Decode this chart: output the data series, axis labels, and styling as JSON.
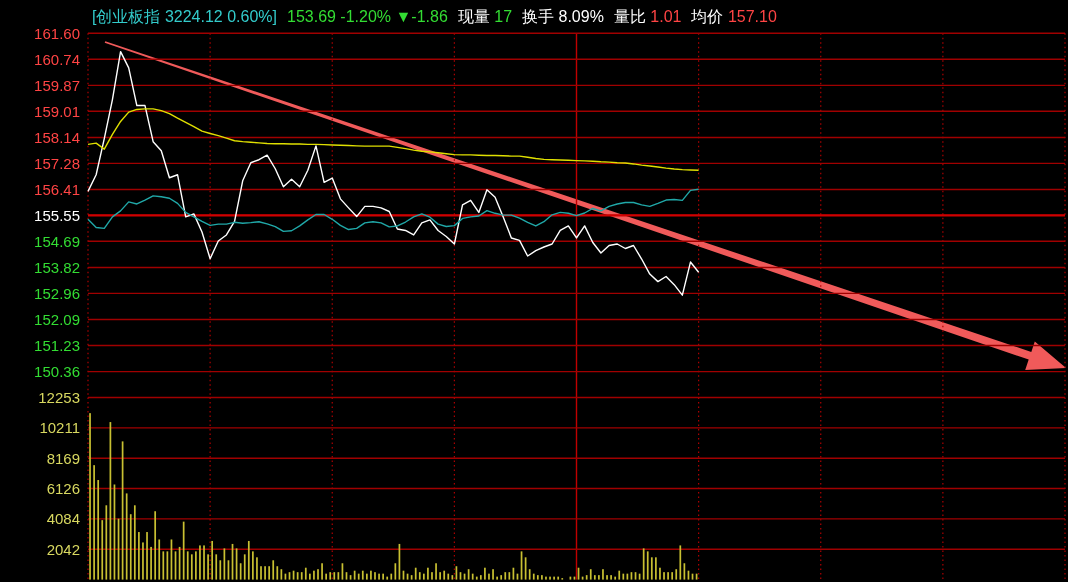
{
  "chart_data": [
    {
      "type": "line",
      "annotations": [
        "[创业板指 3224.12 0.60%]",
        "153.69 -1.20% ▼-1.86",
        "现量 17",
        "换手 8.09%",
        "量比 1.01",
        "均价 157.10"
      ],
      "categories": [
        null,
        null,
        null,
        null,
        null,
        null,
        null,
        null,
        null,
        null,
        null,
        null,
        null,
        null,
        null,
        null,
        null,
        null,
        null,
        null,
        null,
        null,
        null,
        null,
        null,
        null,
        null,
        null,
        null,
        null,
        null,
        null,
        null,
        null,
        null,
        null,
        null,
        null,
        null,
        null,
        null,
        null,
        null,
        null,
        null,
        null,
        null,
        null,
        null,
        null,
        null,
        null,
        null,
        null,
        null,
        null,
        null,
        null,
        null,
        null,
        null,
        null,
        null,
        null,
        null,
        null,
        null,
        null,
        null,
        null,
        null,
        null,
        null,
        null,
        null,
        null
      ],
      "ylim": [
        149.5,
        161.6
      ],
      "yticks": [
        150.36,
        151.23,
        152.09,
        152.96,
        153.82,
        154.69,
        155.55,
        156.41,
        157.28,
        158.14,
        159.01,
        159.87,
        160.74,
        {
          "value": 161.6,
          "label": "161.60"
        }
      ],
      "tick_labels": "y",
      "grid": true,
      "ref_lines": [
        {
          "axis": "y",
          "value": 155.55
        }
      ],
      "series": [
        {
          "color": "#ffffff",
          "values": [
            156.35,
            156.9,
            158.1,
            159.4,
            160.99,
            160.45,
            159.2,
            159.2,
            158.0,
            157.7,
            156.8,
            156.9,
            155.5,
            155.6,
            155.0,
            154.11,
            154.7,
            154.9,
            155.35,
            156.7,
            157.3,
            157.4,
            157.55,
            157.1,
            156.5,
            156.75,
            156.5,
            157.05,
            157.86,
            156.65,
            156.79,
            156.1,
            155.8,
            155.51,
            155.85,
            155.85,
            155.8,
            155.68,
            155.1,
            155.05,
            154.9,
            155.3,
            155.4,
            155.05,
            154.85,
            154.6,
            155.9,
            156.05,
            155.65,
            156.4,
            156.15,
            155.5,
            154.8,
            154.72,
            154.2,
            154.38,
            154.5,
            154.6,
            155.05,
            155.2,
            154.8,
            155.2,
            154.65,
            154.3,
            154.55,
            154.6,
            154.45,
            154.55,
            154.1,
            153.6,
            153.35,
            153.52,
            153.25,
            152.9,
            154.0,
            153.66
          ]
        },
        {
          "color": "#e0e000",
          "values": [
            157.91,
            157.95,
            157.75,
            158.24,
            158.67,
            158.98,
            159.07,
            159.09,
            159.09,
            159.03,
            158.93,
            158.78,
            158.64,
            158.5,
            158.35,
            158.27,
            158.2,
            158.12,
            158.03,
            158.0,
            157.98,
            157.96,
            157.94,
            157.93,
            157.93,
            157.92,
            157.92,
            157.91,
            157.91,
            157.9,
            157.89,
            157.88,
            157.87,
            157.86,
            157.85,
            157.85,
            157.85,
            157.85,
            157.81,
            157.77,
            157.72,
            157.68,
            157.66,
            157.63,
            157.6,
            157.57,
            157.56,
            157.56,
            157.55,
            157.54,
            157.54,
            157.53,
            157.52,
            157.52,
            157.48,
            157.44,
            157.41,
            157.4,
            157.39,
            157.38,
            157.37,
            157.36,
            157.35,
            157.33,
            157.32,
            157.3,
            157.29,
            157.26,
            157.22,
            157.19,
            157.16,
            157.12,
            157.09,
            157.07,
            157.06,
            157.05
          ]
        },
        {
          "color": "#20a8a8",
          "values": [
            155.42,
            155.15,
            155.12,
            155.5,
            155.7,
            156.0,
            155.93,
            156.06,
            156.2,
            156.17,
            156.12,
            155.95,
            155.65,
            155.5,
            155.35,
            155.22,
            155.26,
            155.26,
            155.32,
            155.29,
            155.31,
            155.34,
            155.27,
            155.18,
            155.02,
            155.04,
            155.2,
            155.4,
            155.58,
            155.58,
            155.42,
            155.22,
            155.08,
            155.12,
            155.3,
            155.34,
            155.3,
            155.17,
            155.2,
            155.33,
            155.5,
            155.6,
            155.49,
            155.26,
            155.18,
            155.21,
            155.45,
            155.5,
            155.53,
            155.71,
            155.62,
            155.56,
            155.56,
            155.46,
            155.32,
            155.2,
            155.34,
            155.57,
            155.65,
            155.62,
            155.54,
            155.63,
            155.78,
            155.7,
            155.85,
            155.93,
            155.98,
            155.98,
            155.9,
            155.85,
            155.95,
            156.06,
            156.08,
            156.05,
            156.38,
            156.42
          ]
        }
      ]
    },
    {
      "type": "bar",
      "categories": [
        null,
        null,
        null,
        null,
        null,
        null,
        null,
        null,
        null,
        null,
        null,
        null,
        null,
        null,
        null,
        null,
        null,
        null,
        null,
        null,
        null,
        null,
        null,
        null,
        null,
        null,
        null,
        null,
        null,
        null,
        null,
        null,
        null,
        null,
        null,
        null,
        null,
        null,
        null,
        null,
        null,
        null,
        null,
        null,
        null,
        null,
        null,
        null,
        null,
        null,
        null,
        null,
        null,
        null,
        null,
        null,
        null,
        null,
        null,
        null,
        null,
        null,
        null,
        null,
        null,
        null,
        null,
        null,
        null,
        null,
        null,
        null,
        null,
        null,
        null,
        null,
        null,
        null,
        null,
        null,
        null,
        null,
        null,
        null,
        null,
        null,
        null,
        null,
        null,
        null,
        null,
        null,
        null,
        null,
        null,
        null,
        null,
        null,
        null,
        null,
        null,
        null,
        null,
        null,
        null,
        null,
        null,
        null,
        null,
        null,
        null,
        null,
        null,
        null,
        null,
        null,
        null,
        null,
        null,
        null,
        null,
        null,
        null,
        null,
        null,
        null,
        null,
        null,
        null,
        null,
        null,
        null,
        null,
        null,
        null,
        null,
        null,
        null,
        null,
        null,
        null,
        null,
        null,
        null,
        null,
        null,
        null,
        null,
        null,
        null,
        null,
        null,
        null,
        null,
        null,
        null,
        null,
        null,
        null,
        null,
        null,
        null,
        null,
        null,
        null,
        null,
        null,
        null,
        null,
        null,
        null,
        null,
        null,
        null,
        null,
        null,
        null,
        null,
        null,
        null,
        null,
        null,
        null,
        null,
        null,
        null,
        null,
        null,
        null,
        null,
        null,
        null,
        null,
        null,
        null,
        null,
        null,
        null,
        null,
        null,
        null,
        null,
        null,
        null,
        null,
        null,
        null,
        null,
        null,
        null,
        null,
        null,
        null,
        null,
        null,
        null,
        null,
        null,
        null,
        null,
        null,
        null,
        null,
        null,
        null,
        null,
        null,
        null,
        null,
        null,
        null,
        null,
        null,
        null,
        null,
        null,
        null,
        null,
        null,
        null
      ],
      "ylim": [
        0,
        12253
      ],
      "yticks": [
        2042,
        4084,
        6126,
        8169,
        10211,
        12253
      ],
      "tick_labels": "y",
      "grid": true,
      "color": "#c8c032",
      "values": [
        11200,
        7700,
        6700,
        4000,
        5000,
        10600,
        6400,
        4100,
        9300,
        5800,
        4400,
        5000,
        3200,
        2500,
        3200,
        2200,
        4600,
        2700,
        1900,
        1900,
        2700,
        1900,
        2200,
        3900,
        1900,
        1700,
        1900,
        2300,
        2300,
        1700,
        2600,
        1700,
        1300,
        2100,
        1300,
        2400,
        2100,
        1100,
        1700,
        2600,
        1900,
        1500,
        900,
        900,
        900,
        1300,
        900,
        700,
        400,
        500,
        600,
        500,
        500,
        800,
        400,
        600,
        700,
        1100,
        400,
        500,
        500,
        500,
        1100,
        500,
        300,
        600,
        400,
        600,
        400,
        600,
        500,
        400,
        400,
        200,
        400,
        1100,
        2400,
        600,
        400,
        300,
        800,
        500,
        400,
        800,
        500,
        1100,
        500,
        600,
        400,
        300,
        900,
        500,
        400,
        700,
        400,
        200,
        300,
        800,
        400,
        700,
        200,
        300,
        500,
        500,
        800,
        400,
        1900,
        1500,
        700,
        400,
        300,
        300,
        200,
        200,
        200,
        200,
        100,
        0,
        200,
        200,
        800,
        200,
        300,
        700,
        300,
        300,
        700,
        300,
        300,
        200,
        600,
        400,
        400,
        500,
        500,
        400,
        2100,
        1900,
        1500,
        1500,
        800,
        500,
        500,
        500,
        700,
        2300,
        1100,
        600,
        400,
        400,
        null,
        null,
        null,
        null,
        null,
        null,
        null,
        null,
        null,
        null,
        null,
        null,
        null,
        null,
        null,
        null,
        null,
        null,
        null,
        null,
        null,
        null,
        null,
        null,
        null,
        null,
        null,
        null,
        null,
        null,
        null,
        null,
        null,
        null,
        null,
        null,
        null,
        null,
        null,
        null,
        null,
        null,
        null,
        null,
        null,
        null,
        null,
        null,
        null,
        null,
        null,
        null,
        null,
        null,
        null,
        null,
        null,
        null,
        null,
        null,
        null,
        null,
        null,
        null,
        null,
        null,
        null,
        null,
        null,
        null,
        null,
        null,
        null,
        null,
        null,
        null,
        null,
        null,
        null,
        null,
        null,
        null,
        null,
        null,
        null,
        null,
        null,
        null,
        null,
        null
      ]
    }
  ]
}
